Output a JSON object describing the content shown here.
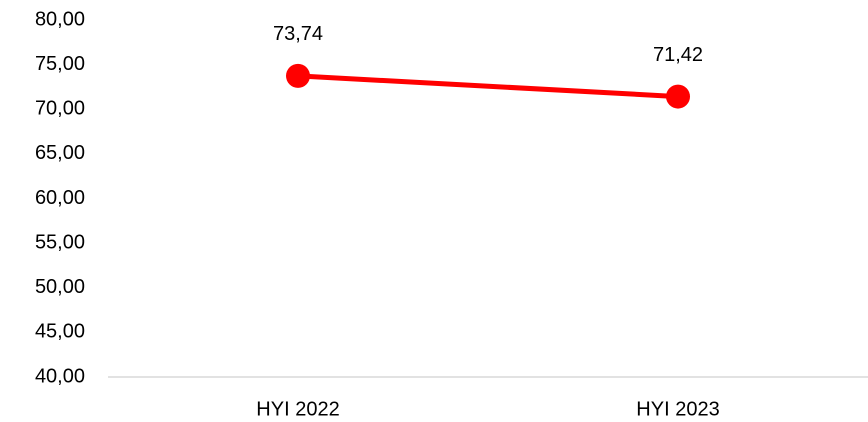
{
  "chart_data": {
    "type": "line",
    "categories": [
      "HYI 2022",
      "HYI 2023"
    ],
    "series": [
      {
        "color": "#ff0000",
        "values": [
          73.74,
          71.42
        ],
        "value_labels": [
          "73,74",
          "71,42"
        ]
      }
    ],
    "ylim": [
      40,
      80
    ],
    "yticks": [
      {
        "value": 40,
        "label": "40,00"
      },
      {
        "value": 45,
        "label": "45,00"
      },
      {
        "value": 50,
        "label": "50,00"
      },
      {
        "value": 55,
        "label": "55,00"
      },
      {
        "value": 60,
        "label": "60,00"
      },
      {
        "value": 65,
        "label": "65,00"
      },
      {
        "value": 70,
        "label": "70,00"
      },
      {
        "value": 75,
        "label": "75,00"
      },
      {
        "value": 80,
        "label": "80,00"
      }
    ],
    "grid": false
  }
}
